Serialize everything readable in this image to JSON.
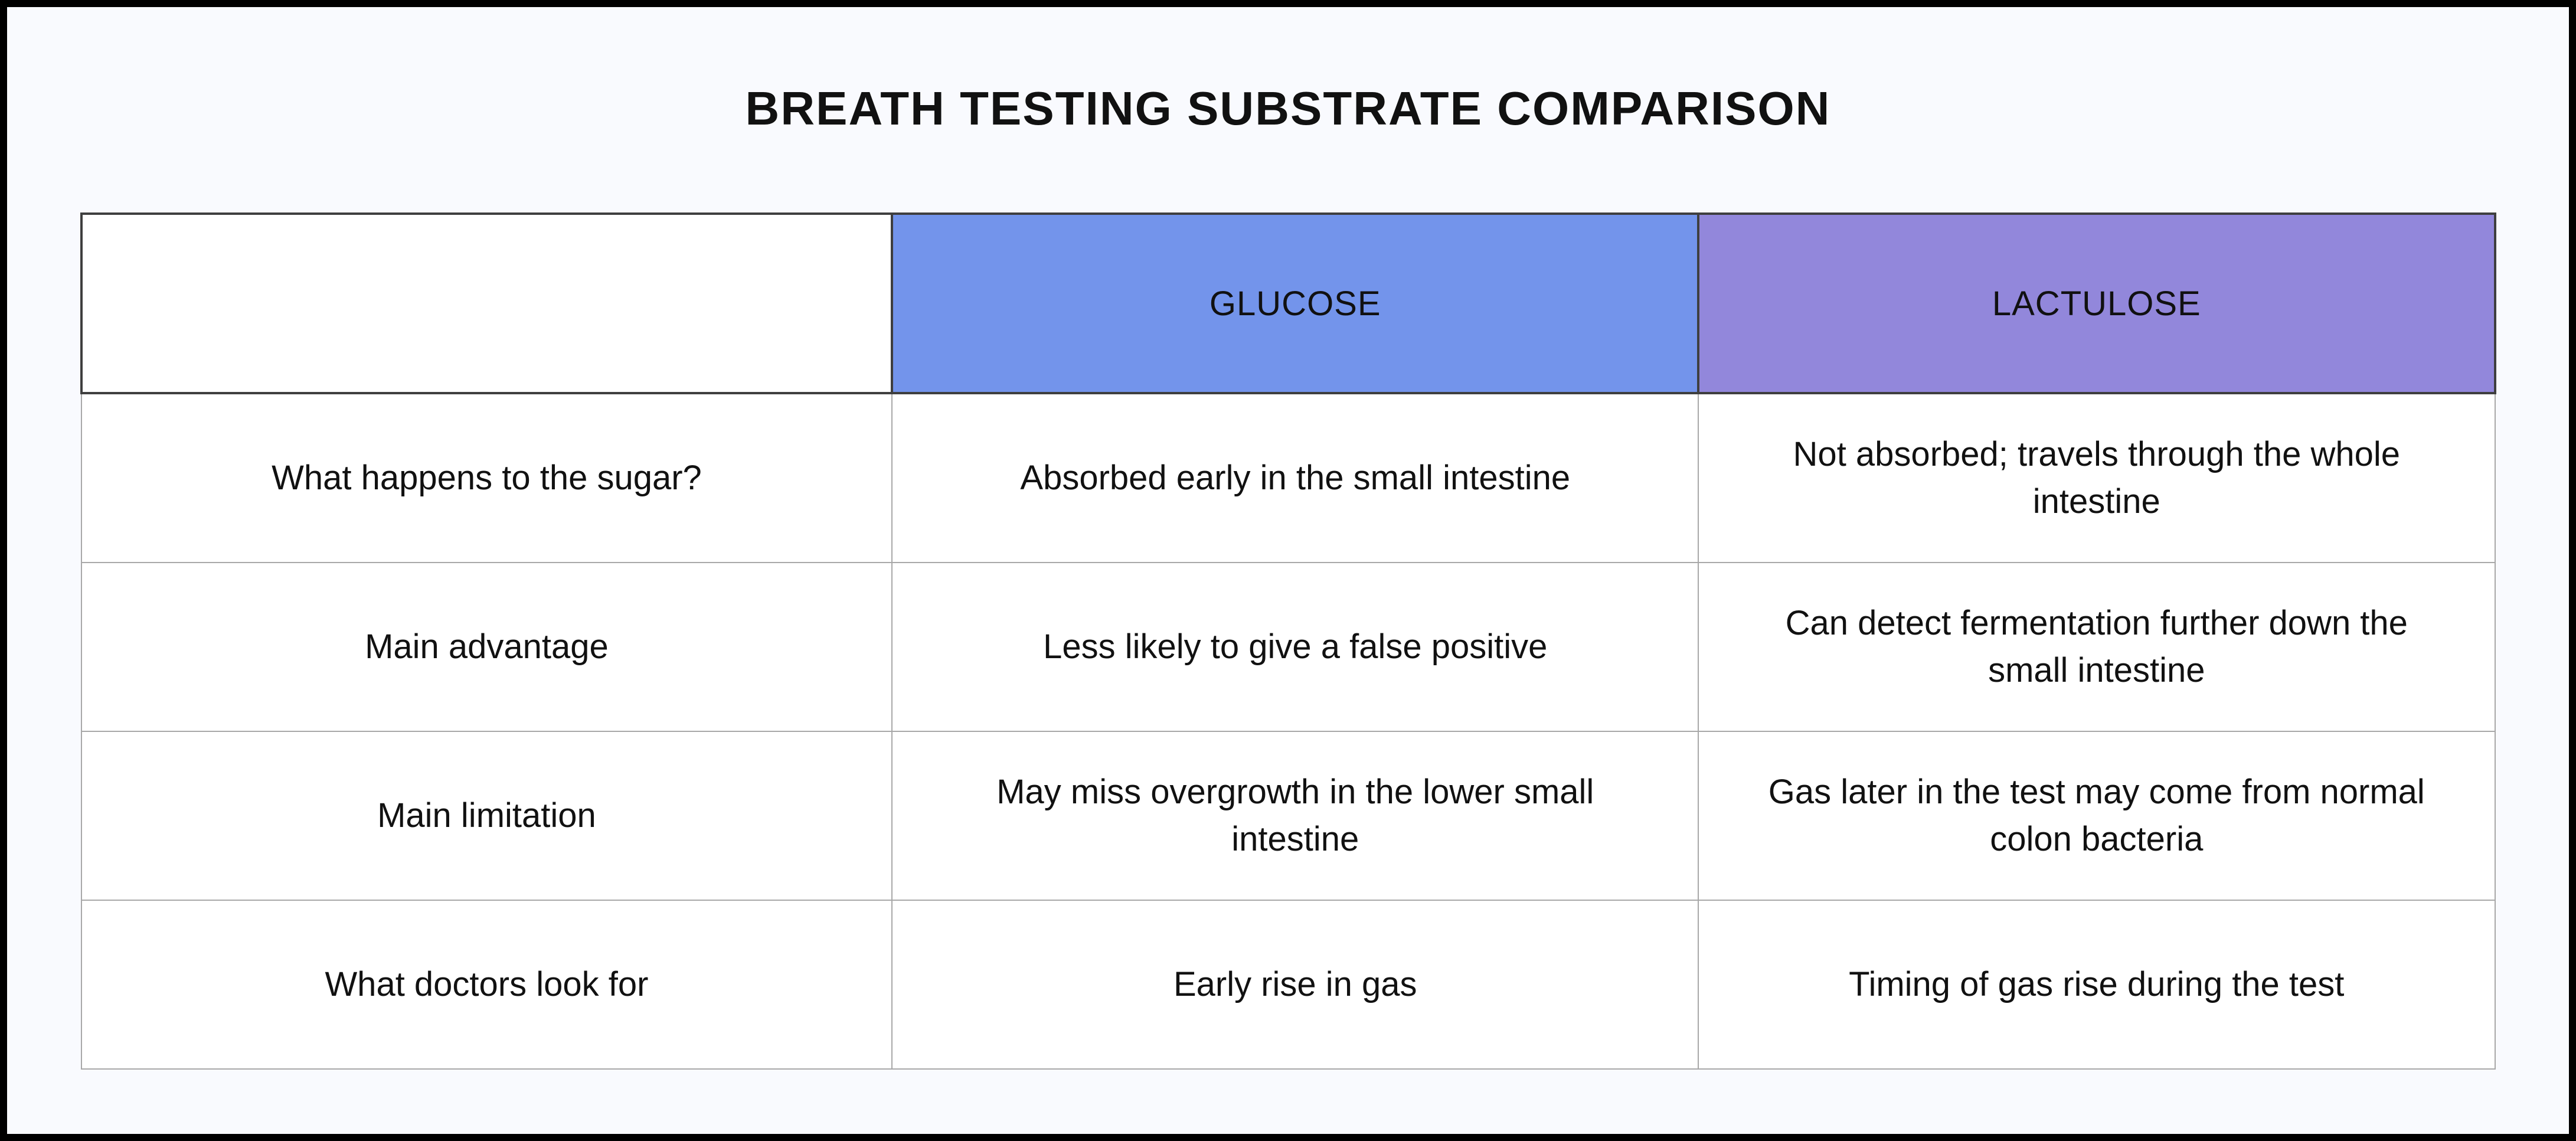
{
  "title": "BREATH TESTING SUBSTRATE COMPARISON",
  "colors": {
    "page_background": "#F9FAFE",
    "frame": "#000000",
    "glucose_header": "#7394EB",
    "lactulose_header": "#9287DB",
    "header_border": "#3F3F3F",
    "cell_border": "#A8A8A8",
    "text": "#111111"
  },
  "table": {
    "columns": [
      {
        "label": ""
      },
      {
        "label": "GLUCOSE"
      },
      {
        "label": "LACTULOSE"
      }
    ],
    "rows": [
      {
        "label": "What happens to the sugar?",
        "glucose": "Absorbed early in the small intestine",
        "lactulose": "Not absorbed; travels through the whole intestine"
      },
      {
        "label": "Main advantage",
        "glucose": "Less likely to give a false positive",
        "lactulose": "Can detect fermentation further down the small intestine"
      },
      {
        "label": "Main limitation",
        "glucose": "May miss overgrowth in the lower small intestine",
        "lactulose": "Gas later in the test may come from normal colon bacteria"
      },
      {
        "label": "What doctors look for",
        "glucose": "Early rise in gas",
        "lactulose": "Timing of gas rise during the test"
      }
    ]
  }
}
